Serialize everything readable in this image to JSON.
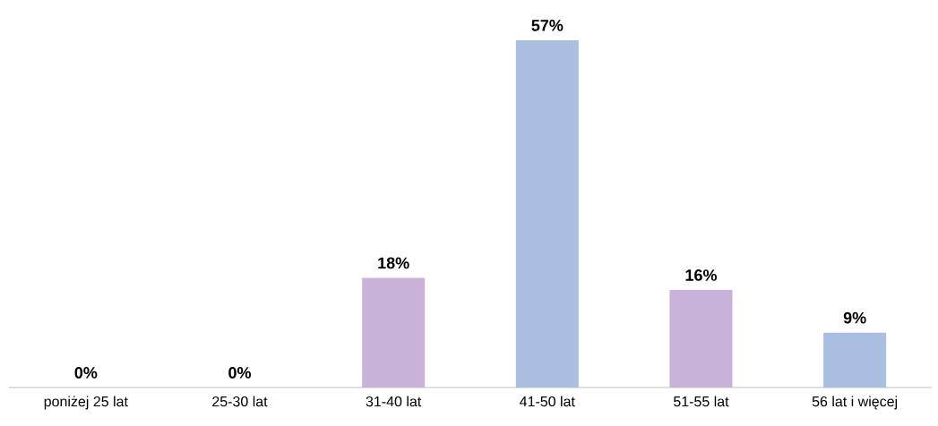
{
  "chart_data": {
    "type": "bar",
    "categories": [
      "poniżej 25 lat",
      "25-30 lat",
      "31-40 lat",
      "41-50 lat",
      "51-55 lat",
      "56 lat i więcej"
    ],
    "values": [
      0,
      0,
      18,
      57,
      16,
      9
    ],
    "colors": [
      "#c9b2d9",
      "#a9bee0",
      "#c9b2d9",
      "#a9bee0",
      "#c9b2d9",
      "#a9bee0"
    ],
    "value_labels": [
      "0%",
      "0%",
      "18%",
      "57%",
      "16%",
      "9%"
    ]
  }
}
